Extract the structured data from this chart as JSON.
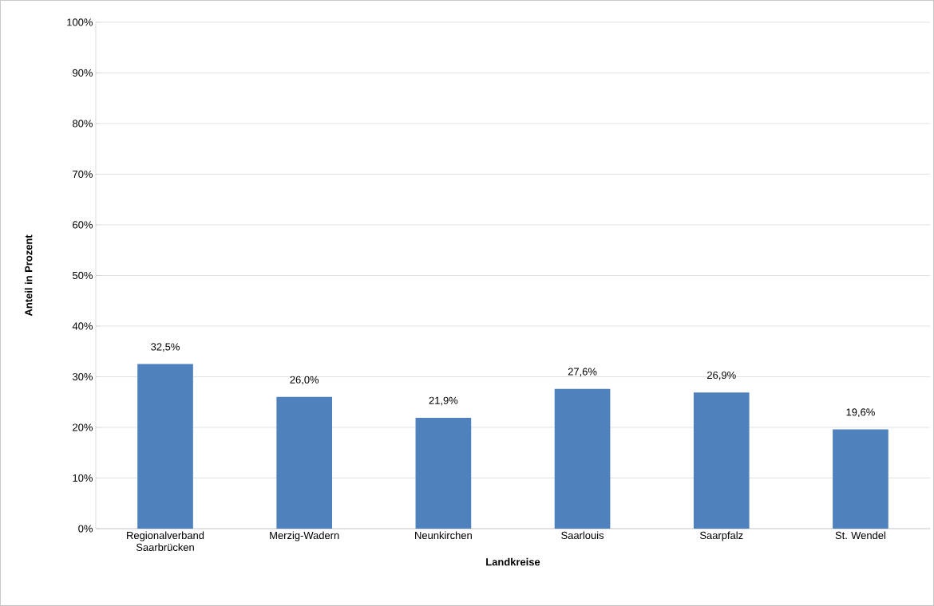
{
  "chart_data": {
    "type": "bar",
    "xlabel": "Landkreise",
    "ylabel": "Anteil in Prozent",
    "categories": [
      "Regionalverband Saarbrücken",
      "Merzig-Wadern",
      "Neunkirchen",
      "Saarlouis",
      "Saarpfalz",
      "St. Wendel"
    ],
    "values": [
      32.5,
      26.0,
      21.9,
      27.6,
      26.9,
      19.6
    ],
    "value_labels": [
      "32,5%",
      "26,0%",
      "21,9%",
      "27,6%",
      "26,9%",
      "19,6%"
    ],
    "color": "#4f81bd",
    "ylim": [
      0,
      100
    ],
    "yticks": [
      {
        "value": 0,
        "label": "0%"
      },
      {
        "value": 10,
        "label": "10%"
      },
      {
        "value": 20,
        "label": "20%"
      },
      {
        "value": 30,
        "label": "30%"
      },
      {
        "value": 40,
        "label": "40%"
      },
      {
        "value": 50,
        "label": "50%"
      },
      {
        "value": 60,
        "label": "60%"
      },
      {
        "value": 70,
        "label": "70%"
      },
      {
        "value": 80,
        "label": "80%"
      },
      {
        "value": 90,
        "label": "90%"
      },
      {
        "value": 100,
        "label": "100%"
      }
    ],
    "grid": "y"
  }
}
